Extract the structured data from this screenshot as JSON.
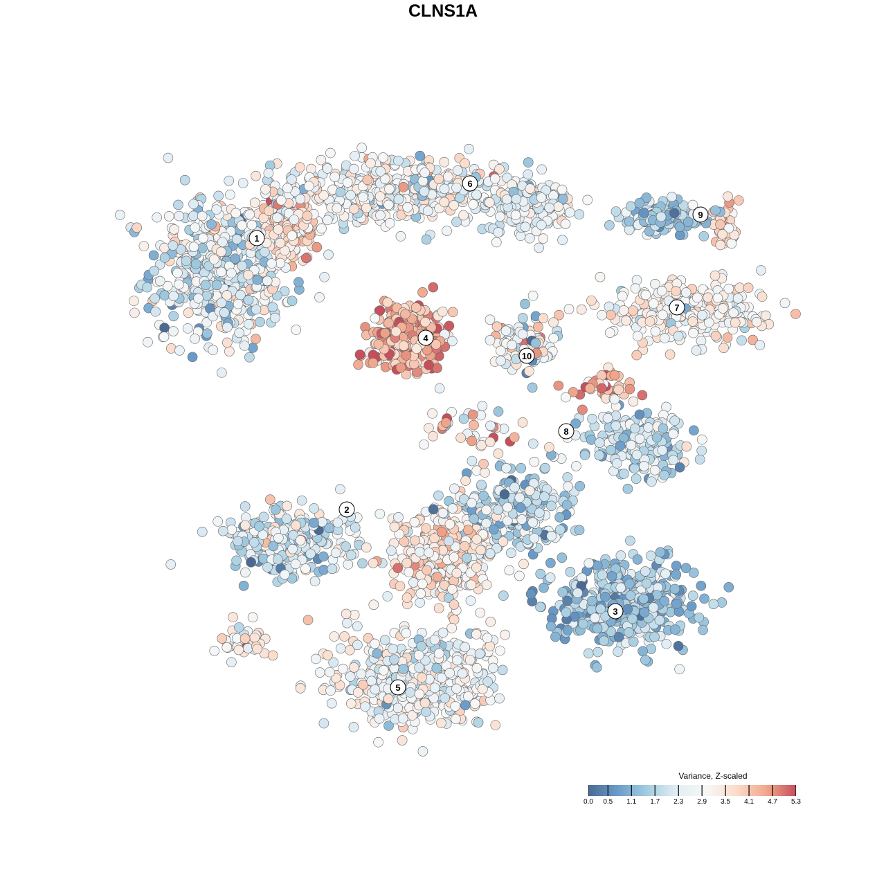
{
  "chart_data": {
    "type": "scatter",
    "title": "CLNS1A",
    "xlabel": "",
    "ylabel": "",
    "xlim": [
      -45,
      50
    ],
    "ylim": [
      -46,
      46
    ],
    "grid": false,
    "point_generation": "seeded gaussian samples per cluster region (tSNE units); value = expression",
    "regions": [
      {
        "cluster": "1",
        "center": [
          -32,
          25
        ],
        "spread": [
          8.5,
          9
        ],
        "n": 520,
        "mean": 2.4,
        "sd": 0.8
      },
      {
        "cluster": "1",
        "center": [
          -22,
          31
        ],
        "spread": [
          4,
          4
        ],
        "n": 130,
        "mean": 3.6,
        "sd": 0.6
      },
      {
        "cluster": "6",
        "center": [
          -8,
          36.5
        ],
        "spread": [
          13,
          4
        ],
        "n": 460,
        "mean": 2.9,
        "sd": 0.7
      },
      {
        "cluster": "6",
        "center": [
          12,
          34.5
        ],
        "spread": [
          6,
          3.5
        ],
        "n": 160,
        "mean": 2.5,
        "sd": 0.6
      },
      {
        "cluster": "4",
        "center": [
          -5,
          15.5
        ],
        "spread": [
          4.5,
          4
        ],
        "n": 320,
        "mean": 4.3,
        "sd": 0.6
      },
      {
        "cluster": "10",
        "center": [
          12,
          14
        ],
        "spread": [
          4,
          4
        ],
        "n": 90,
        "mean": 2.8,
        "sd": 1.1
      },
      {
        "cluster": "9",
        "center": [
          32,
          32.5
        ],
        "spread": [
          6,
          2
        ],
        "n": 130,
        "mean": 1.6,
        "sd": 0.6
      },
      {
        "cluster": "9",
        "center": [
          41,
          31
        ],
        "spread": [
          1.5,
          3
        ],
        "n": 45,
        "mean": 3.7,
        "sd": 0.5
      },
      {
        "cluster": "7",
        "center": [
          35,
          19
        ],
        "spread": [
          10,
          3.5
        ],
        "n": 260,
        "mean": 3.0,
        "sd": 0.6
      },
      {
        "cluster": "8",
        "center": [
          28,
          0
        ],
        "spread": [
          6,
          3.5
        ],
        "n": 230,
        "mean": 2.0,
        "sd": 0.6
      },
      {
        "cluster": "8",
        "center": [
          24,
          8
        ],
        "spread": [
          5,
          2
        ],
        "n": 40,
        "mean": 4.2,
        "sd": 0.6
      },
      {
        "cluster": "2",
        "center": [
          -22,
          -14
        ],
        "spread": [
          8,
          4
        ],
        "n": 260,
        "mean": 2.1,
        "sd": 0.8
      },
      {
        "cluster": "2/3",
        "center": [
          0,
          -16
        ],
        "spread": [
          6,
          6
        ],
        "n": 320,
        "mean": 3.4,
        "sd": 0.6
      },
      {
        "cluster": "3",
        "center": [
          10,
          -10
        ],
        "spread": [
          7,
          5
        ],
        "n": 260,
        "mean": 2.0,
        "sd": 0.7
      },
      {
        "cluster": "3",
        "center": [
          26,
          -23
        ],
        "spread": [
          9,
          5
        ],
        "n": 420,
        "mean": 1.4,
        "sd": 0.6
      },
      {
        "cluster": "5",
        "center": [
          -4,
          -34
        ],
        "spread": [
          10,
          6
        ],
        "n": 460,
        "mean": 2.7,
        "sd": 0.7
      },
      {
        "cluster": "5",
        "center": [
          -29,
          -29
        ],
        "spread": [
          3,
          2
        ],
        "n": 40,
        "mean": 3.2,
        "sd": 0.6
      },
      {
        "cluster": "mixed",
        "center": [
          4,
          2
        ],
        "spread": [
          6,
          4
        ],
        "n": 40,
        "mean": 3.5,
        "sd": 1.2
      }
    ],
    "cluster_labels": [
      {
        "label": "1",
        "x": -26.9,
        "y": 29.6
      },
      {
        "label": "6",
        "x": 3.9,
        "y": 37.5
      },
      {
        "label": "9",
        "x": 37.2,
        "y": 33
      },
      {
        "label": "7",
        "x": 33.8,
        "y": 19.6
      },
      {
        "label": "4",
        "x": -2.5,
        "y": 15.2
      },
      {
        "label": "10",
        "x": 12.1,
        "y": 12.6
      },
      {
        "label": "8",
        "x": 17.8,
        "y": 1.7
      },
      {
        "label": "2",
        "x": -13.9,
        "y": -9.6
      },
      {
        "label": "3",
        "x": 24.9,
        "y": -24.3
      },
      {
        "label": "5",
        "x": -6.5,
        "y": -35.3
      }
    ],
    "legend": {
      "title": "Variance, Z-scaled",
      "placement": "bottom-right",
      "range": [
        0,
        5.3
      ],
      "ticks": [
        "0.0",
        "0.5",
        "1.1",
        "1.7",
        "2.3",
        "2.9",
        "3.5",
        "4.1",
        "4.7",
        "5.3"
      ],
      "colors": [
        "#4a6a94",
        "#6b9dca",
        "#a5cde1",
        "#e3eef5",
        "#f7f7f7",
        "#fbdccb",
        "#f1a78c",
        "#c64f5d"
      ]
    }
  }
}
